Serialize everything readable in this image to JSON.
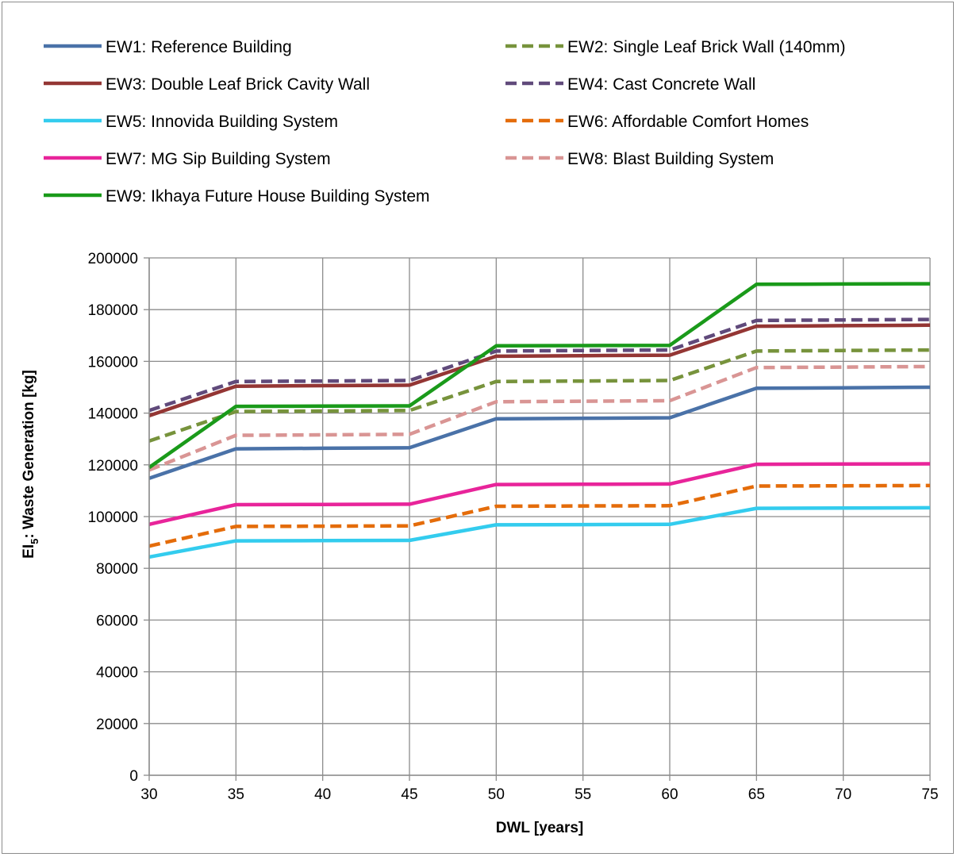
{
  "chart_data": {
    "type": "line",
    "xlabel": "DWL [years]",
    "ylabel_main": "EI",
    "ylabel_sub": "5",
    "ylabel_rest": ": Waste Generation [kg]",
    "x": [
      30,
      35,
      40,
      45,
      50,
      55,
      60,
      65,
      70,
      75
    ],
    "xlim": [
      30,
      75
    ],
    "ylim": [
      0,
      200000
    ],
    "yticks": [
      0,
      20000,
      40000,
      60000,
      80000,
      100000,
      120000,
      140000,
      160000,
      180000,
      200000
    ],
    "grid": true,
    "legend_position": "top",
    "series": [
      {
        "name": "EW1: Reference Building",
        "color": "#4a72a8",
        "dashed": false,
        "values": [
          114800,
          126200,
          126400,
          126600,
          137800,
          138000,
          138200,
          149600,
          149800,
          150000
        ]
      },
      {
        "name": "EW2: Single Leaf Brick Wall (140mm)",
        "color": "#77933c",
        "dashed": true,
        "values": [
          129200,
          140600,
          140800,
          141000,
          152200,
          152400,
          152600,
          164000,
          164200,
          164400
        ]
      },
      {
        "name": "EW3: Double Leaf Brick Cavity Wall",
        "color": "#943634",
        "dashed": false,
        "values": [
          139000,
          150400,
          150600,
          150800,
          162000,
          162200,
          162400,
          173600,
          173800,
          174000
        ]
      },
      {
        "name": "EW4: Cast Concrete Wall",
        "color": "#604a7b",
        "dashed": true,
        "values": [
          141000,
          152200,
          152400,
          152600,
          164000,
          164200,
          164400,
          175800,
          176000,
          176200
        ]
      },
      {
        "name": "EW5: Innovida Building System",
        "color": "#33ccee",
        "dashed": false,
        "values": [
          84400,
          90600,
          90700,
          90800,
          96800,
          96900,
          97000,
          103200,
          103300,
          103400
        ]
      },
      {
        "name": "EW6: Affordable Comfort Homes",
        "color": "#e46c0a",
        "dashed": true,
        "values": [
          88600,
          96200,
          96300,
          96400,
          104000,
          104100,
          104200,
          111800,
          111900,
          112000
        ]
      },
      {
        "name": "EW7: MG Sip Building System",
        "color": "#e8249a",
        "dashed": false,
        "values": [
          97000,
          104600,
          104700,
          104800,
          112400,
          112500,
          112600,
          120200,
          120300,
          120400
        ]
      },
      {
        "name": "EW8: Blast Building System",
        "color": "#d99594",
        "dashed": true,
        "values": [
          118000,
          131400,
          131600,
          131800,
          144400,
          144600,
          144800,
          157600,
          157800,
          158000
        ]
      },
      {
        "name": "EW9: Ikhaya Future House Building System",
        "color": "#1a9a1a",
        "dashed": false,
        "values": [
          119000,
          142600,
          142700,
          142800,
          166000,
          166100,
          166200,
          189800,
          189900,
          190000
        ]
      }
    ]
  }
}
